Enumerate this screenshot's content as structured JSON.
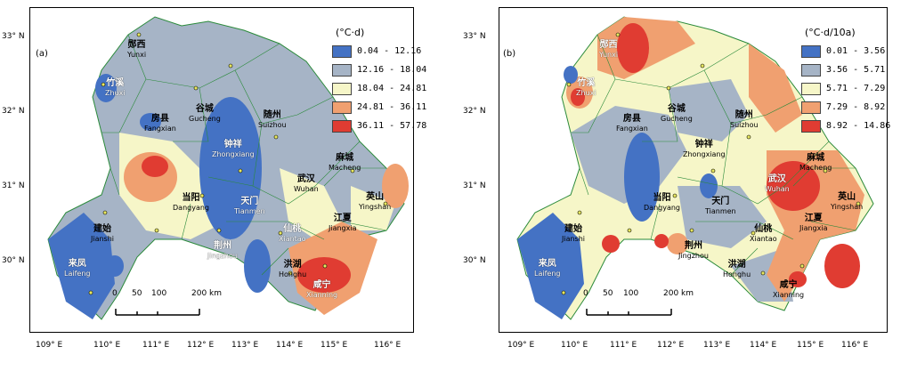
{
  "panels": [
    {
      "id": "a",
      "panel_label": "(a)",
      "legend_title": "(°C·d)",
      "legend": [
        {
          "label": "0.04 - 12.16",
          "color": "#4472c4"
        },
        {
          "label": "12.16 - 18.04",
          "color": "#a6b4c6"
        },
        {
          "label": "18.04 - 24.81",
          "color": "#f6f6c8"
        },
        {
          "label": "24.81 - 36.11",
          "color": "#f0a070"
        },
        {
          "label": "36.11 - 57.78",
          "color": "#e03c32"
        }
      ]
    },
    {
      "id": "b",
      "panel_label": "(b)",
      "legend_title": "(°C·d/10a)",
      "legend": [
        {
          "label": "0.01 - 3.56",
          "color": "#4472c4"
        },
        {
          "label": "3.56 - 5.71",
          "color": "#a6b4c6"
        },
        {
          "label": "5.71 - 7.29",
          "color": "#f6f6c8"
        },
        {
          "label": "7.29 - 8.92",
          "color": "#f0a070"
        },
        {
          "label": "8.92 - 14.86",
          "color": "#e03c32"
        }
      ]
    }
  ],
  "cities": [
    {
      "zh": "郧西",
      "en": "Yunxi"
    },
    {
      "zh": "竹溪",
      "en": "Zhuxi"
    },
    {
      "zh": "房县",
      "en": "Fangxian"
    },
    {
      "zh": "谷城",
      "en": "Gucheng"
    },
    {
      "zh": "随州",
      "en": "Suizhou"
    },
    {
      "zh": "钟祥",
      "en": "Zhongxiang"
    },
    {
      "zh": "麻城",
      "en": "Macheng"
    },
    {
      "zh": "武汉",
      "en": "Wuhan"
    },
    {
      "zh": "当阳",
      "en": "Dangyang"
    },
    {
      "zh": "天门",
      "en": "Tianmen"
    },
    {
      "zh": "英山",
      "en": "Yingshan"
    },
    {
      "zh": "仙桃",
      "en": "Xiantao"
    },
    {
      "zh": "江夏",
      "en": "Jiangxia"
    },
    {
      "zh": "建始",
      "en": "Jianshi"
    },
    {
      "zh": "荆州",
      "en": "Jingzhou"
    },
    {
      "zh": "洪湖",
      "en": "Honghu"
    },
    {
      "zh": "来凤",
      "en": "Laifeng"
    },
    {
      "zh": "咸宁",
      "en": "Xianning"
    }
  ],
  "lat_ticks": [
    "33° N",
    "32° N",
    "31° N",
    "30° N"
  ],
  "lon_ticks": [
    "109° E",
    "110° E",
    "111° E",
    "112° E",
    "113° E",
    "114° E",
    "115° E",
    "116° E"
  ],
  "scale_bar": {
    "labels": [
      "0",
      "50",
      "100",
      "200 km"
    ]
  }
}
